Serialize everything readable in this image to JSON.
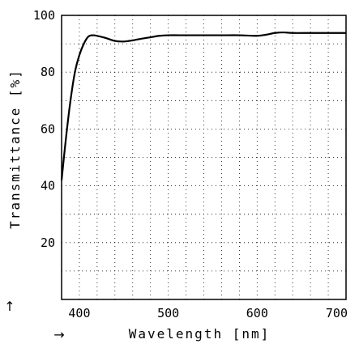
{
  "chart_data": {
    "type": "line",
    "xlabel": "Wavelength [nm]",
    "ylabel": "Transmittance [%]",
    "xlim": [
      380,
      700
    ],
    "ylim": [
      0,
      100
    ],
    "x_ticks": [
      400,
      500,
      600,
      700
    ],
    "y_ticks": [
      20,
      40,
      60,
      80,
      100
    ],
    "x_arrow": "→",
    "y_arrow": "↑",
    "grid": "dotted",
    "line_color": "#000000",
    "series": [
      {
        "x": [
          380,
          385,
          390,
          395,
          400,
          405,
          410,
          415,
          420,
          430,
          440,
          450,
          460,
          470,
          480,
          490,
          500,
          520,
          540,
          560,
          580,
          600,
          610,
          620,
          630,
          640,
          660,
          680,
          700
        ],
        "y": [
          42,
          57,
          70,
          80,
          86,
          90,
          92.5,
          93,
          92.8,
          92,
          91,
          90.8,
          91.2,
          91.8,
          92.3,
          92.8,
          93,
          93,
          93,
          93,
          93,
          92.8,
          93.2,
          93.8,
          94,
          93.8,
          93.8,
          93.8,
          93.8
        ]
      }
    ]
  }
}
